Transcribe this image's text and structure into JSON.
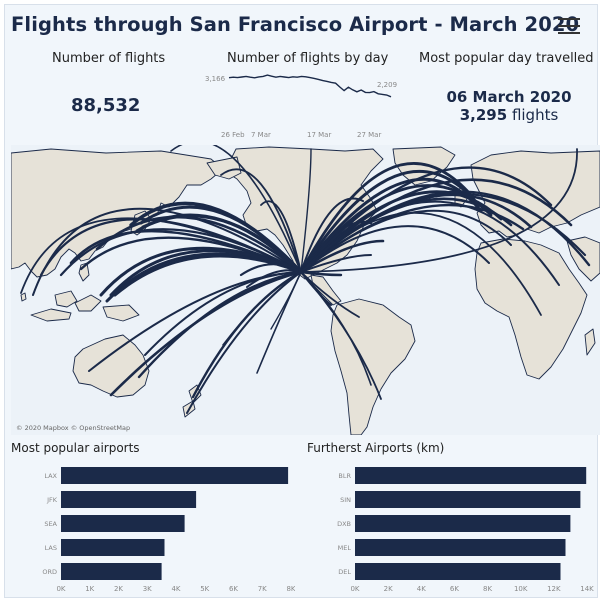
{
  "header": {
    "title": "Flights through San Francisco Airport - March 2020",
    "menu_icon": "hamburger-menu-icon"
  },
  "kpis": {
    "flights_label": "Number of flights",
    "flights_value": "88,532",
    "by_day_label": "Number of flights by day",
    "popular_label": "Most popular day travelled",
    "popular_date": "06 March 2020",
    "popular_count": "3,295",
    "popular_unit": "flights"
  },
  "sparkline": {
    "start_label": "3,166",
    "end_label": "2,209",
    "x_ticks": [
      "26 Feb",
      "7 Mar",
      "17 Mar",
      "27 Mar"
    ],
    "values": [
      3166,
      3190,
      3170,
      3200,
      3230,
      3190,
      3160,
      3205,
      3230,
      3295,
      3240,
      3190,
      3230,
      3200,
      3170,
      3210,
      3190,
      3230,
      3210,
      3170,
      3130,
      3080,
      3020,
      2980,
      2930,
      2890,
      2700,
      2520,
      2690,
      2560,
      2460,
      2550,
      2430,
      2420,
      2470,
      2360,
      2330,
      2300,
      2209
    ]
  },
  "map": {
    "attribution": "© 2020 Mapbox © OpenStreetMap",
    "colors": {
      "land": "#e6e2d8",
      "water": "#ecf2f8",
      "border": "#1b2a49",
      "route": "#1b2a49"
    }
  },
  "popular_airports": {
    "title": "Most popular airports",
    "categories": [
      "LAX",
      "JFK",
      "SEA",
      "LAS",
      "ORD"
    ],
    "values": [
      7900,
      4700,
      4300,
      3600,
      3500
    ],
    "x_ticks": [
      "0K",
      "1K",
      "2K",
      "3K",
      "4K",
      "5K",
      "6K",
      "7K",
      "8K"
    ],
    "xlim": [
      0,
      8000
    ]
  },
  "furthest_airports": {
    "title": "Furtherst Airports (km)",
    "categories": [
      "BLR",
      "SIN",
      "DXB",
      "MEL",
      "DEL"
    ],
    "values": [
      13950,
      13600,
      13000,
      12700,
      12400
    ],
    "x_ticks": [
      "0K",
      "2K",
      "4K",
      "6K",
      "8K",
      "10K",
      "12K",
      "14K"
    ],
    "xlim": [
      0,
      14000
    ]
  },
  "colors": {
    "bar": "#1b2a49",
    "title": "#1b2a49",
    "background": "#f1f6fb"
  }
}
